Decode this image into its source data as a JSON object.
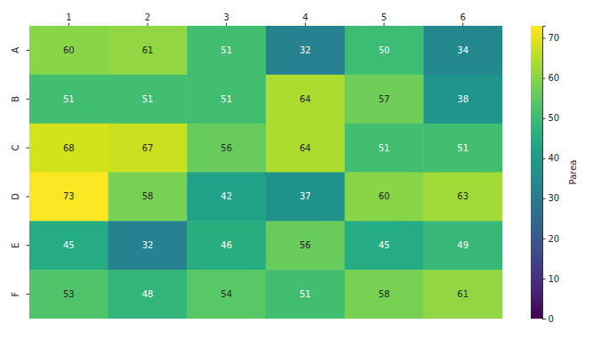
{
  "chart_data": {
    "type": "heatmap",
    "x_categories": [
      "1",
      "2",
      "3",
      "4",
      "5",
      "6"
    ],
    "y_categories": [
      "A",
      "B",
      "C",
      "D",
      "E",
      "F"
    ],
    "values": [
      [
        60,
        61,
        51,
        32,
        50,
        34
      ],
      [
        51,
        51,
        51,
        64,
        57,
        38
      ],
      [
        68,
        67,
        56,
        64,
        51,
        51
      ],
      [
        73,
        58,
        42,
        37,
        60,
        63
      ],
      [
        45,
        32,
        46,
        56,
        45,
        49
      ],
      [
        53,
        48,
        54,
        51,
        58,
        61
      ]
    ],
    "color": "viridis",
    "data_labels": true,
    "colorbar": {
      "label": "Parea",
      "range": [
        0,
        73
      ],
      "ticks": [
        0,
        10,
        20,
        30,
        40,
        50,
        60,
        70
      ]
    }
  }
}
